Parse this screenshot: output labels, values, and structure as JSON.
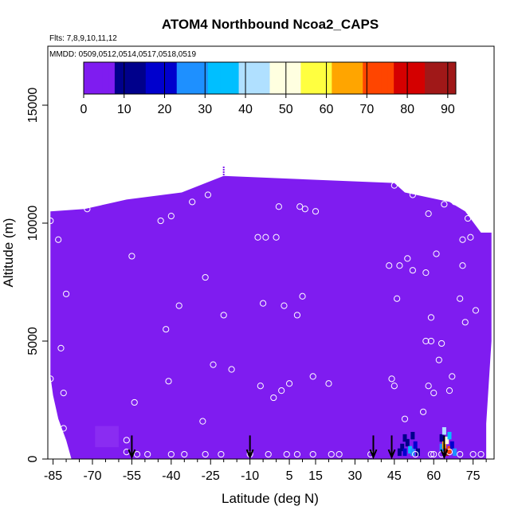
{
  "chart_data": {
    "type": "heatmap",
    "title": "ATOM4 Northbound Ncoa2_CAPS",
    "note_flights": "Flts: 7,8,9,10,11,12",
    "note_dates": "MMDD: 0509,0512,0514,0517,0518,0519",
    "xlabel": "Latitude (deg N)",
    "ylabel": "Altitude (m)",
    "xlim": [
      -87,
      83
    ],
    "ylim": [
      0,
      17500
    ],
    "x_ticks": [
      -85,
      -70,
      -55,
      -40,
      -25,
      -10,
      5,
      15,
      30,
      45,
      60,
      75
    ],
    "x_ticks_minor": [
      -80,
      -75,
      -65,
      -60,
      -50,
      -45,
      -35,
      -30,
      -20,
      -15,
      -5,
      0,
      10,
      20,
      25,
      35,
      40,
      50,
      55,
      65,
      70,
      80
    ],
    "y_ticks": [
      0,
      5000,
      10000,
      15000
    ],
    "colorbar": {
      "ticks": [
        0,
        10,
        20,
        30,
        40,
        50,
        60,
        70,
        80,
        90
      ],
      "range": [
        0,
        92
      ],
      "colors": [
        "#7f1cf0",
        "#00008b",
        "#0000cd",
        "#1e90ff",
        "#00bfff",
        "#b0e0ff",
        "#ffffe0",
        "#ffff40",
        "#ffa500",
        "#ff4500",
        "#d40000",
        "#a01818"
      ]
    },
    "background_value": 1,
    "upper_profile": [
      {
        "x": -86,
        "top": 10500
      },
      {
        "x": -73,
        "top": 10600
      },
      {
        "x": -57,
        "top": 11000
      },
      {
        "x": -36,
        "top": 11300
      },
      {
        "x": -20,
        "top": 12000
      },
      {
        "x": 45,
        "top": 11700
      },
      {
        "x": 49,
        "top": 11300
      },
      {
        "x": 66,
        "top": 10900
      },
      {
        "x": 72,
        "top": 10500
      },
      {
        "x": 78,
        "top": 9600
      },
      {
        "x": 82,
        "top": 9600
      }
    ],
    "lower_left_edge": [
      {
        "y": 3500,
        "x": -86
      },
      {
        "y": 2700,
        "x": -85
      },
      {
        "y": 1700,
        "x": -83
      },
      {
        "y": 1100,
        "x": -81
      },
      {
        "y": 800,
        "x": -80
      },
      {
        "y": 0,
        "x": -78
      }
    ],
    "lower_right_edge": [
      {
        "y": 9600,
        "x": 82
      },
      {
        "y": 5000,
        "x": 82
      },
      {
        "y": 1500,
        "x": 80
      },
      {
        "y": 0,
        "x": 80
      }
    ],
    "hot_cells": [
      {
        "x": 47,
        "y": 200,
        "v": 12
      },
      {
        "x": 48,
        "y": 400,
        "v": 10
      },
      {
        "x": 49,
        "y": 800,
        "v": 8
      },
      {
        "x": 49,
        "y": 200,
        "v": 20
      },
      {
        "x": 50,
        "y": 1200,
        "v": 6
      },
      {
        "x": 50,
        "y": 600,
        "v": 14
      },
      {
        "x": 51,
        "y": 300,
        "v": 32
      },
      {
        "x": 52,
        "y": 900,
        "v": 12
      },
      {
        "x": 52,
        "y": 200,
        "v": 25
      },
      {
        "x": 53,
        "y": 500,
        "v": 18
      },
      {
        "x": 54,
        "y": 200,
        "v": 15
      },
      {
        "x": 63,
        "y": 800,
        "v": 12
      },
      {
        "x": 63,
        "y": 400,
        "v": 30
      },
      {
        "x": 64,
        "y": 1100,
        "v": 45
      },
      {
        "x": 64,
        "y": 500,
        "v": 65
      },
      {
        "x": 65,
        "y": 200,
        "v": 85
      },
      {
        "x": 65,
        "y": 700,
        "v": 50
      },
      {
        "x": 66,
        "y": 300,
        "v": 70
      },
      {
        "x": 66,
        "y": 900,
        "v": 38
      },
      {
        "x": 67,
        "y": 500,
        "v": 22
      },
      {
        "x": 68,
        "y": 200,
        "v": 28
      }
    ],
    "sample_points": [
      [
        -86,
        10100
      ],
      [
        -83,
        9300
      ],
      [
        -82,
        4700
      ],
      [
        -81,
        2800
      ],
      [
        -80,
        7000
      ],
      [
        -81,
        1300
      ],
      [
        -86,
        3400
      ],
      [
        -72,
        10600
      ],
      [
        -55,
        8600
      ],
      [
        -54,
        2400
      ],
      [
        -57,
        800
      ],
      [
        -57,
        300
      ],
      [
        -53,
        200
      ],
      [
        -49,
        200
      ],
      [
        -44,
        10100
      ],
      [
        -42,
        5500
      ],
      [
        -41,
        3300
      ],
      [
        -40,
        10300
      ],
      [
        -40,
        200
      ],
      [
        -37,
        6500
      ],
      [
        -35,
        200
      ],
      [
        -32,
        10900
      ],
      [
        -28,
        1600
      ],
      [
        -27,
        7700
      ],
      [
        -26,
        11200
      ],
      [
        -24,
        4000
      ],
      [
        -20,
        6100
      ],
      [
        -17,
        3800
      ],
      [
        -27,
        200
      ],
      [
        -21,
        200
      ],
      [
        -7,
        9400
      ],
      [
        -6,
        3100
      ],
      [
        -5,
        6600
      ],
      [
        -4,
        9400
      ],
      [
        -1,
        2600
      ],
      [
        0,
        9400
      ],
      [
        1,
        10700
      ],
      [
        2,
        2900
      ],
      [
        3,
        6500
      ],
      [
        5,
        3200
      ],
      [
        8,
        6100
      ],
      [
        9,
        10700
      ],
      [
        10,
        6900
      ],
      [
        11,
        10600
      ],
      [
        14,
        3500
      ],
      [
        15,
        10500
      ],
      [
        20,
        3200
      ],
      [
        -10,
        200
      ],
      [
        -3,
        200
      ],
      [
        4,
        200
      ],
      [
        8,
        200
      ],
      [
        14,
        200
      ],
      [
        21,
        200
      ],
      [
        24,
        200
      ],
      [
        36,
        200
      ],
      [
        43,
        8200
      ],
      [
        44,
        3400
      ],
      [
        45,
        11600
      ],
      [
        45,
        3100
      ],
      [
        46,
        6800
      ],
      [
        47,
        8200
      ],
      [
        49,
        1700
      ],
      [
        50,
        8500
      ],
      [
        52,
        11200
      ],
      [
        52,
        8000
      ],
      [
        53,
        200
      ],
      [
        56,
        2000
      ],
      [
        57,
        7900
      ],
      [
        57,
        5000
      ],
      [
        58,
        3100
      ],
      [
        58,
        10400
      ],
      [
        59,
        6000
      ],
      [
        59,
        5000
      ],
      [
        60,
        2800
      ],
      [
        61,
        8700
      ],
      [
        62,
        4200
      ],
      [
        63,
        4900
      ],
      [
        64,
        10800
      ],
      [
        66,
        2900
      ],
      [
        67,
        3500
      ],
      [
        68,
        10900
      ],
      [
        70,
        6800
      ],
      [
        71,
        9300
      ],
      [
        71,
        8200
      ],
      [
        72,
        5800
      ],
      [
        73,
        10200
      ],
      [
        74,
        9400
      ],
      [
        76,
        6300
      ],
      [
        75,
        200
      ],
      [
        70,
        200
      ],
      [
        78,
        200
      ],
      [
        59,
        200
      ],
      [
        60,
        200
      ],
      [
        63,
        200
      ],
      [
        66,
        300
      ]
    ],
    "flight_markers_x": [
      -55,
      -10,
      37,
      44,
      64
    ],
    "narrow_spike": {
      "x": -20,
      "y0": 11900,
      "y1": 12400
    }
  }
}
